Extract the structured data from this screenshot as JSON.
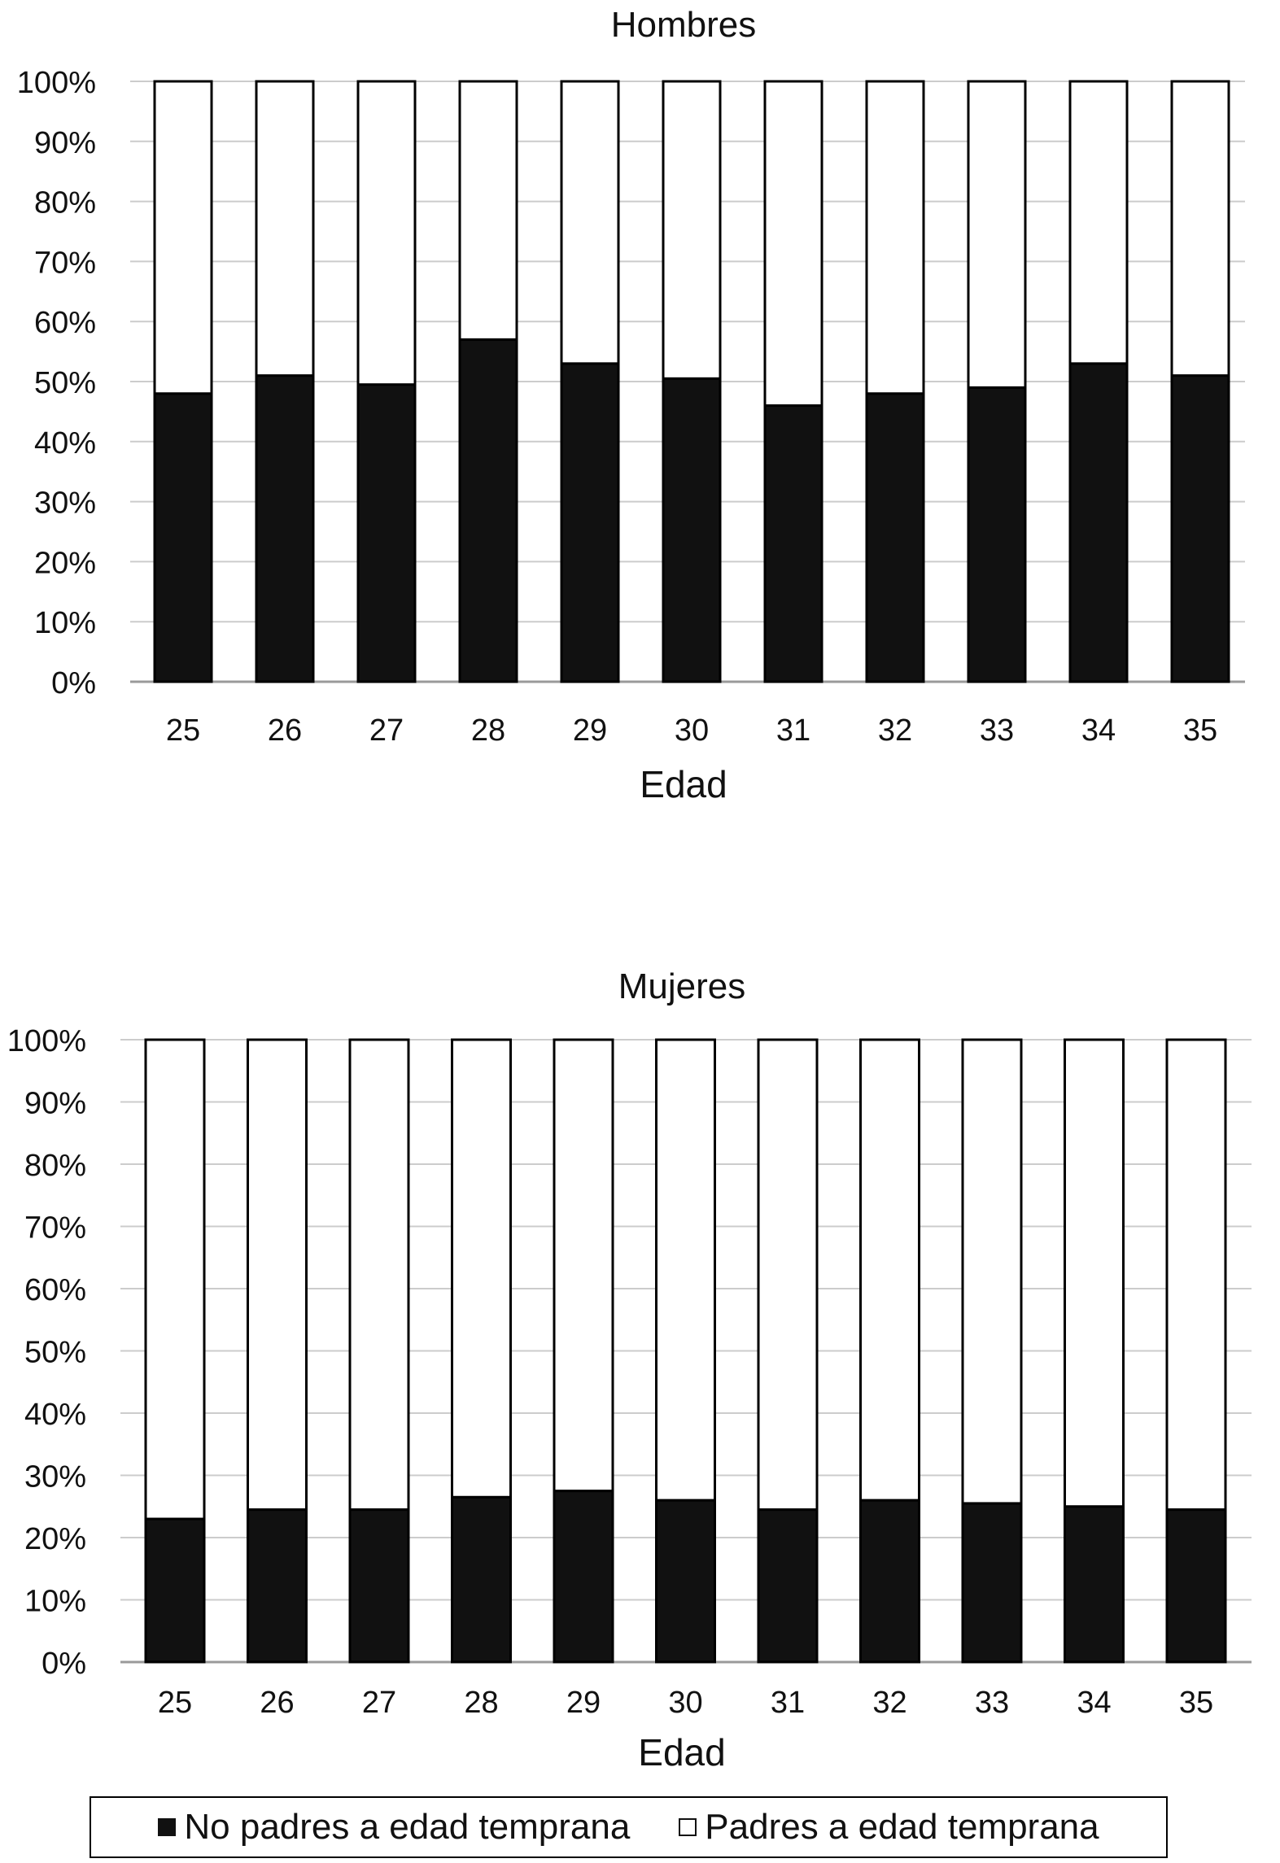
{
  "chart_data": [
    {
      "type": "bar",
      "stacked": true,
      "title": "Hombres",
      "xlabel": "Edad",
      "ylabel": "",
      "ylim": [
        0,
        100
      ],
      "y_ticks": [
        "0%",
        "10%",
        "20%",
        "30%",
        "40%",
        "50%",
        "60%",
        "70%",
        "80%",
        "90%",
        "100%"
      ],
      "grid": true,
      "categories": [
        "25",
        "26",
        "27",
        "28",
        "29",
        "30",
        "31",
        "32",
        "33",
        "34",
        "35"
      ],
      "series": [
        {
          "name": "No padres a edad temprana",
          "values": [
            48,
            51,
            49.5,
            57,
            53,
            50.5,
            46,
            48,
            49,
            53,
            51
          ]
        },
        {
          "name": "Padres a edad temprana",
          "values": [
            52,
            49,
            50.5,
            43,
            47,
            49.5,
            54,
            52,
            51,
            47,
            49
          ]
        }
      ]
    },
    {
      "type": "bar",
      "stacked": true,
      "title": "Mujeres",
      "xlabel": "Edad",
      "ylabel": "",
      "ylim": [
        0,
        100
      ],
      "y_ticks": [
        "0%",
        "10%",
        "20%",
        "30%",
        "40%",
        "50%",
        "60%",
        "70%",
        "80%",
        "90%",
        "100%"
      ],
      "grid": true,
      "categories": [
        "25",
        "26",
        "27",
        "28",
        "29",
        "30",
        "31",
        "32",
        "33",
        "34",
        "35"
      ],
      "series": [
        {
          "name": "No padres a edad temprana",
          "values": [
            23,
            24.5,
            24.5,
            26.5,
            27.5,
            26,
            24.5,
            26,
            25.5,
            25,
            24.5
          ]
        },
        {
          "name": "Padres a edad temprana",
          "values": [
            77,
            75.5,
            75.5,
            73.5,
            72.5,
            74,
            75.5,
            74,
            74.5,
            75,
            75.5
          ]
        }
      ]
    }
  ],
  "legend": {
    "items": [
      {
        "label": "No padres a edad temprana",
        "color": "#111111"
      },
      {
        "label": "Padres a edad temprana",
        "color": "#ffffff"
      }
    ]
  },
  "colors": {
    "dark": "#111111",
    "light": "#ffffff",
    "grid": "#cccccc",
    "outline": "#000000"
  }
}
